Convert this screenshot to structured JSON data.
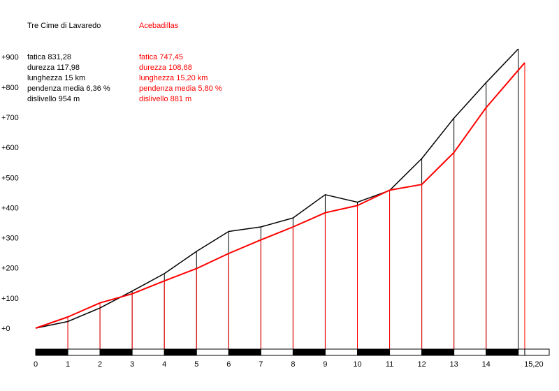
{
  "chart_data": {
    "type": "line",
    "legend": [
      {
        "name": "Tre Cime di Lavaredo",
        "color": "#000000"
      },
      {
        "name": "Acebadillas",
        "color": "#ff0000"
      }
    ],
    "stats": [
      {
        "color": "#000000",
        "lines": [
          "fatica 831,28",
          "durezza 117,98",
          "lunghezza 15 km",
          "pendenza media 6,36 %",
          "dislivello 954 m"
        ]
      },
      {
        "color": "#ff0000",
        "lines": [
          "fatica 747,45",
          "durezza 108,68",
          "lunghezza 15,20 km",
          "pendenza media 5,80 %",
          "dislivello 881 m"
        ]
      }
    ],
    "y_ticks": [
      "+0",
      "+100",
      "+200",
      "+300",
      "+400",
      "+500",
      "+600",
      "+700",
      "+800",
      "+900"
    ],
    "x_ticks": [
      "0",
      "1",
      "2",
      "3",
      "4",
      "5",
      "6",
      "7",
      "8",
      "9",
      "10",
      "11",
      "12",
      "13",
      "14",
      "15,20"
    ],
    "ylim": [
      0,
      954
    ],
    "xlim": [
      0,
      15.2
    ],
    "series": [
      {
        "name": "Tre Cime di Lavaredo",
        "color": "#000000",
        "x": [
          0,
          1,
          2,
          3,
          4,
          5,
          6,
          7,
          8,
          9,
          10,
          11,
          12,
          13,
          14,
          15
        ],
        "y": [
          0,
          22,
          67,
          123,
          181,
          255,
          321,
          336,
          366,
          443,
          418,
          457,
          563,
          697,
          815,
          927
        ]
      },
      {
        "name": "Acebadillas",
        "color": "#ff0000",
        "x": [
          0,
          1,
          2,
          3,
          4,
          5,
          6,
          7,
          8,
          9,
          10,
          11,
          12,
          13,
          14,
          15.2
        ],
        "y": [
          0,
          37,
          84,
          114,
          157,
          198,
          248,
          293,
          336,
          383,
          407,
          458,
          477,
          583,
          732,
          881
        ]
      }
    ]
  }
}
